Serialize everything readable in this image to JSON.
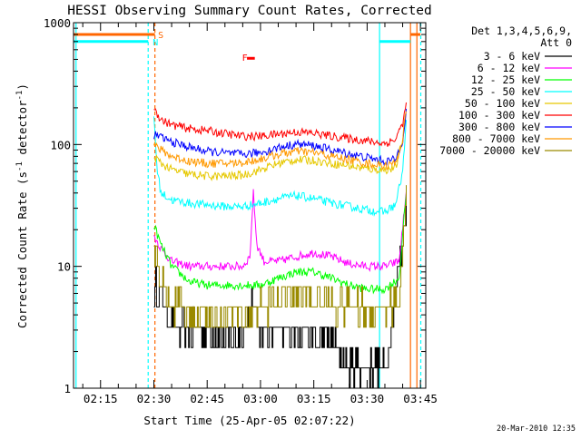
{
  "chart_data": {
    "type": "line",
    "title": "HESSI Observing Summary Count Rates, Corrected",
    "xlabel": "Start Time (25-Apr-05 02:07:22)",
    "ylabel": "Corrected Count Rate (s⁻¹ detector⁻¹)",
    "ylabel_parts": {
      "main": "Corrected Count Rate (s",
      "sup1": "-1",
      "mid": " detector",
      "sup2": "-1",
      "end": ")"
    },
    "y_scale": "log",
    "ylim": [
      1,
      1000
    ],
    "yticks": [
      1,
      10,
      100,
      1000
    ],
    "ytick_labels": [
      "1",
      "10",
      "100",
      "1000"
    ],
    "xlim_minutes": [
      127.4,
      226.5
    ],
    "xticks_minutes": [
      135,
      150,
      165,
      180,
      195,
      210,
      225
    ],
    "xtick_labels": [
      "02:15",
      "02:30",
      "02:45",
      "03:00",
      "03:15",
      "03:30",
      "03:45"
    ],
    "legend_header": [
      "Det 1,3,4,5,6,9,",
      "Att 0"
    ],
    "legend_placement": "right",
    "timestamp": "20-Mar-2010 12:35",
    "series": [
      {
        "name": "3 - 6 keV",
        "color": "#000000",
        "points": [
          [
            150,
            7
          ],
          [
            153,
            4.5
          ],
          [
            156,
            3
          ],
          [
            160,
            3
          ],
          [
            165,
            3
          ],
          [
            170,
            2.5
          ],
          [
            175,
            2.8
          ],
          [
            178,
            5
          ],
          [
            180,
            3
          ],
          [
            185,
            3
          ],
          [
            190,
            3
          ],
          [
            193,
            3
          ],
          [
            195,
            2.5
          ],
          [
            200,
            2.5
          ],
          [
            204,
            1.5
          ],
          [
            210,
            1.5
          ],
          [
            215,
            1.5
          ],
          [
            219,
            10
          ],
          [
            221,
            30
          ]
        ]
      },
      {
        "name": "6 - 12 keV",
        "color": "#ff00ff",
        "points": [
          [
            150,
            18
          ],
          [
            152,
            14
          ],
          [
            155,
            11
          ],
          [
            160,
            10
          ],
          [
            165,
            10
          ],
          [
            170,
            10
          ],
          [
            175,
            10
          ],
          [
            177,
            12
          ],
          [
            178,
            40
          ],
          [
            179,
            15
          ],
          [
            181,
            11
          ],
          [
            185,
            11
          ],
          [
            190,
            12
          ],
          [
            195,
            13
          ],
          [
            200,
            12
          ],
          [
            205,
            10.5
          ],
          [
            210,
            10
          ],
          [
            215,
            10
          ],
          [
            219,
            11
          ],
          [
            221,
            40
          ]
        ]
      },
      {
        "name": "12 - 25 keV",
        "color": "#00ff00",
        "points": [
          [
            150,
            22
          ],
          [
            152,
            15
          ],
          [
            155,
            10
          ],
          [
            160,
            7.5
          ],
          [
            165,
            7
          ],
          [
            170,
            7
          ],
          [
            175,
            7
          ],
          [
            180,
            7
          ],
          [
            185,
            8
          ],
          [
            190,
            9
          ],
          [
            195,
            9
          ],
          [
            200,
            8
          ],
          [
            205,
            7
          ],
          [
            210,
            6.5
          ],
          [
            215,
            6.5
          ],
          [
            219,
            8
          ],
          [
            221,
            40
          ]
        ]
      },
      {
        "name": "25 - 50 keV",
        "color": "#00ffff",
        "points": [
          [
            150,
            170
          ],
          [
            151,
            60
          ],
          [
            152,
            40
          ],
          [
            155,
            35
          ],
          [
            160,
            33
          ],
          [
            165,
            32
          ],
          [
            170,
            31
          ],
          [
            175,
            31
          ],
          [
            180,
            33
          ],
          [
            185,
            36
          ],
          [
            190,
            38
          ],
          [
            195,
            36
          ],
          [
            200,
            33
          ],
          [
            205,
            31
          ],
          [
            210,
            29
          ],
          [
            215,
            28
          ],
          [
            218,
            32
          ],
          [
            220,
            60
          ],
          [
            221,
            150
          ]
        ]
      },
      {
        "name": "50 - 100 keV",
        "color": "#e6c800",
        "points": [
          [
            150,
            80
          ],
          [
            152,
            70
          ],
          [
            155,
            62
          ],
          [
            160,
            57
          ],
          [
            165,
            55
          ],
          [
            170,
            55
          ],
          [
            175,
            56
          ],
          [
            180,
            62
          ],
          [
            185,
            70
          ],
          [
            190,
            75
          ],
          [
            195,
            74
          ],
          [
            200,
            70
          ],
          [
            205,
            67
          ],
          [
            210,
            63
          ],
          [
            215,
            62
          ],
          [
            218,
            64
          ],
          [
            220,
            110
          ],
          [
            221,
            190
          ]
        ]
      },
      {
        "name": "100 - 300 keV",
        "color": "#ff0000",
        "points": [
          [
            150,
            200
          ],
          [
            152,
            160
          ],
          [
            155,
            145
          ],
          [
            160,
            135
          ],
          [
            165,
            130
          ],
          [
            170,
            123
          ],
          [
            175,
            117
          ],
          [
            180,
            117
          ],
          [
            185,
            122
          ],
          [
            190,
            127
          ],
          [
            195,
            124
          ],
          [
            200,
            117
          ],
          [
            205,
            112
          ],
          [
            210,
            107
          ],
          [
            215,
            102
          ],
          [
            218,
            110
          ],
          [
            220,
            150
          ],
          [
            221,
            210
          ]
        ]
      },
      {
        "name": "300 - 800 keV",
        "color": "#0000ff",
        "points": [
          [
            150,
            120
          ],
          [
            152,
            115
          ],
          [
            155,
            105
          ],
          [
            160,
            95
          ],
          [
            165,
            88
          ],
          [
            170,
            85
          ],
          [
            175,
            83
          ],
          [
            180,
            86
          ],
          [
            185,
            94
          ],
          [
            190,
            101
          ],
          [
            195,
            98
          ],
          [
            200,
            90
          ],
          [
            205,
            84
          ],
          [
            210,
            78
          ],
          [
            215,
            73
          ],
          [
            218,
            75
          ],
          [
            220,
            110
          ],
          [
            221,
            190
          ]
        ]
      },
      {
        "name": "800 - 7000 keV",
        "color": "#ff9900",
        "points": [
          [
            150,
            100
          ],
          [
            152,
            90
          ],
          [
            155,
            80
          ],
          [
            160,
            73
          ],
          [
            165,
            70
          ],
          [
            170,
            70
          ],
          [
            175,
            71
          ],
          [
            180,
            76
          ],
          [
            185,
            83
          ],
          [
            190,
            88
          ],
          [
            195,
            86
          ],
          [
            200,
            80
          ],
          [
            205,
            75
          ],
          [
            210,
            70
          ],
          [
            215,
            67
          ],
          [
            218,
            70
          ],
          [
            220,
            110
          ],
          [
            221,
            190
          ]
        ]
      },
      {
        "name": "7000 - 20000 keV",
        "color": "#9a8a00",
        "points": [
          [
            150,
            12
          ],
          [
            152,
            7
          ],
          [
            155,
            5
          ],
          [
            160,
            4
          ],
          [
            165,
            4
          ],
          [
            170,
            4
          ],
          [
            175,
            4
          ],
          [
            180,
            4.5
          ],
          [
            185,
            5.5
          ],
          [
            190,
            6
          ],
          [
            195,
            5.5
          ],
          [
            200,
            5
          ],
          [
            205,
            4.5
          ],
          [
            210,
            4.5
          ],
          [
            215,
            4.5
          ],
          [
            219,
            5
          ],
          [
            221,
            40
          ]
        ]
      }
    ],
    "observing_bars": [
      {
        "color": "#ff6600",
        "y": 800,
        "x": [
          127.4,
          150.3
        ]
      },
      {
        "color": "#00ffff",
        "y": 700,
        "x": [
          127.4,
          148.4
        ]
      },
      {
        "color": "#00ffff",
        "y": 700,
        "x": [
          213.5,
          222.2
        ]
      },
      {
        "color": "#ff6600",
        "y": 800,
        "x": [
          222.2,
          225.0
        ]
      }
    ],
    "markers": [
      {
        "text": "S",
        "color": "#ff6600",
        "x": 151.2,
        "y": 800
      },
      {
        "text": "N",
        "color": "#00ffff",
        "x": 149.7,
        "y": 700
      },
      {
        "text": "F",
        "color": "#ff0000",
        "x": 174.8,
        "y": 520
      }
    ],
    "flare_bar": {
      "color": "#ff0000",
      "x": [
        176.2,
        178.4
      ],
      "y": 510
    },
    "vlines": [
      {
        "x": 128.1,
        "color": "#00ffff",
        "dash": false
      },
      {
        "x": 148.4,
        "color": "#00ffff",
        "dash": true
      },
      {
        "x": 150.3,
        "color": "#ff6600",
        "dash": true
      },
      {
        "x": 213.5,
        "color": "#00ffff",
        "dash": false
      },
      {
        "x": 222.2,
        "color": "#ff6600",
        "dash": false
      },
      {
        "x": 224.0,
        "color": "#ff6600",
        "dash": false
      },
      {
        "x": 225.1,
        "color": "#00ffff",
        "dash": true
      }
    ]
  }
}
